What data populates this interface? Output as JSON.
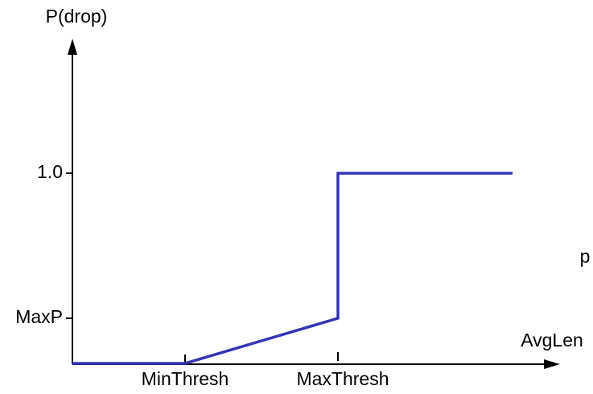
{
  "diagram": {
    "y_axis_label": "P(drop)",
    "x_axis_label": "AvgLen",
    "y_ticks": [
      "1.0",
      "MaxP"
    ],
    "x_ticks": [
      "MinThresh",
      "MaxThresh"
    ],
    "side_text": "p"
  }
}
